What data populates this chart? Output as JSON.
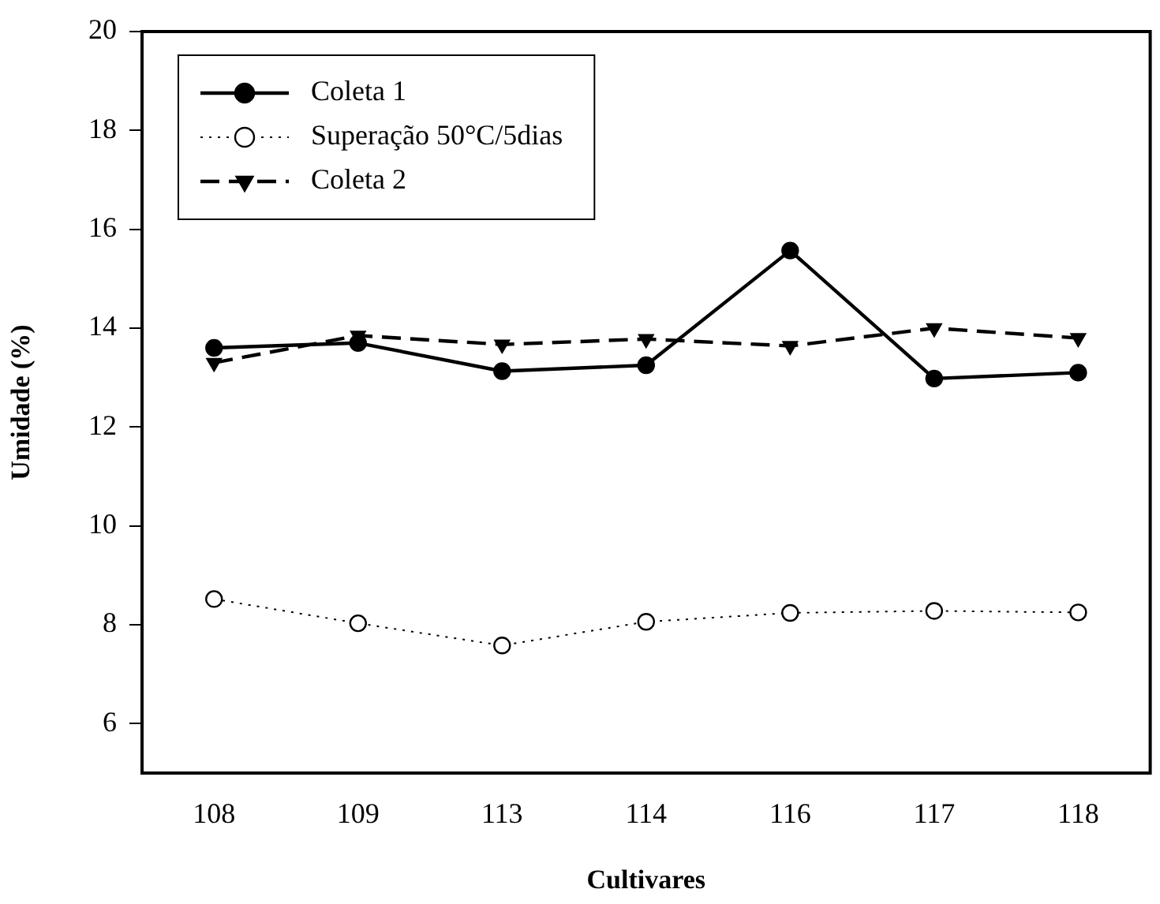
{
  "chart_data": {
    "type": "line",
    "xlabel": "Cultivares",
    "ylabel": "Umidade (%)",
    "categories": [
      "108",
      "109",
      "113",
      "114",
      "116",
      "117",
      "118"
    ],
    "series": [
      {
        "name": "Coleta 1",
        "color": "#000000",
        "marker": "circle",
        "line_style": "solid",
        "values": [
          13.6,
          13.7,
          13.13,
          13.25,
          15.57,
          12.98,
          13.1
        ]
      },
      {
        "name": "Superação 50°C/5dias",
        "color": "#000000",
        "marker": "circle",
        "line_style": "dotted",
        "values": [
          8.52,
          8.03,
          7.58,
          8.06,
          8.24,
          8.28,
          8.25
        ]
      },
      {
        "name": "Coleta 2",
        "color": "#000000",
        "marker": "triangle",
        "line_style": "dashed",
        "values": [
          13.3,
          13.85,
          13.67,
          13.78,
          13.64,
          14.0,
          13.8
        ]
      }
    ],
    "ylim": [
      5,
      20
    ],
    "yticks": [
      6,
      8,
      10,
      12,
      14,
      16,
      18,
      20
    ],
    "grid": false,
    "legend": "top left"
  }
}
